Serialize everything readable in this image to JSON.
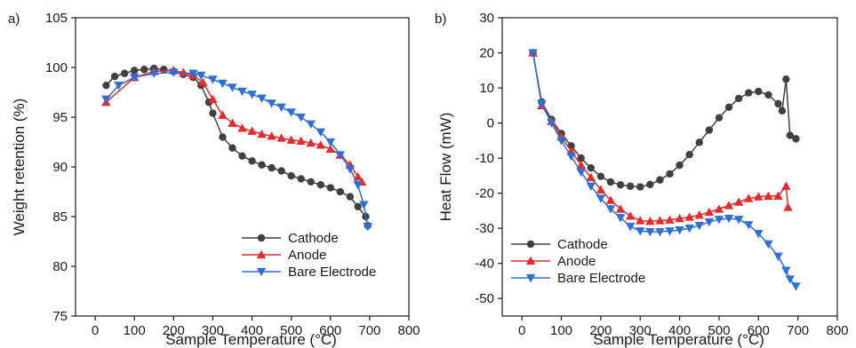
{
  "chart_data": [
    {
      "type": "line",
      "panel_label": "a)",
      "xlabel": "Sample Temperature (°C)",
      "ylabel": "Weight retention (%)",
      "xlim": [
        -50,
        800
      ],
      "ylim": [
        75,
        105
      ],
      "xticks": [
        0,
        100,
        200,
        300,
        400,
        500,
        600,
        700,
        800
      ],
      "yticks": [
        75,
        80,
        85,
        90,
        95,
        100,
        105
      ],
      "grid": false,
      "legend_position": "bottom-right",
      "series": [
        {
          "name": "Cathode",
          "color": "#404040",
          "marker": "circle",
          "x": [
            28,
            50,
            75,
            100,
            125,
            150,
            175,
            200,
            225,
            250,
            270,
            290,
            300,
            325,
            350,
            375,
            400,
            425,
            450,
            475,
            500,
            525,
            550,
            575,
            600,
            625,
            650,
            670,
            690,
            695
          ],
          "y": [
            98.2,
            99.1,
            99.4,
            99.7,
            99.8,
            99.9,
            99.8,
            99.6,
            99.3,
            99.0,
            98.2,
            96.5,
            95.4,
            93.0,
            91.9,
            91.1,
            90.6,
            90.2,
            89.9,
            89.6,
            89.1,
            88.8,
            88.5,
            88.2,
            87.9,
            87.5,
            87.0,
            86.0,
            85.0,
            84.1
          ]
        },
        {
          "name": "Anode",
          "color": "#e8292d",
          "marker": "triangle-up",
          "x": [
            28,
            100,
            150,
            200,
            225,
            250,
            275,
            300,
            325,
            350,
            375,
            400,
            425,
            450,
            475,
            500,
            525,
            550,
            575,
            600,
            625,
            650,
            670,
            680
          ],
          "y": [
            96.5,
            99.0,
            99.6,
            99.7,
            99.5,
            99.2,
            98.5,
            96.8,
            95.2,
            94.4,
            93.9,
            93.6,
            93.3,
            93.1,
            92.9,
            92.7,
            92.6,
            92.4,
            92.2,
            91.8,
            91.2,
            90.2,
            89.0,
            88.5
          ]
        },
        {
          "name": "Bare Electrode",
          "color": "#2e6fd6",
          "marker": "triangle-down",
          "x": [
            28,
            60,
            100,
            150,
            200,
            250,
            270,
            300,
            325,
            350,
            375,
            400,
            425,
            450,
            475,
            500,
            525,
            550,
            575,
            600,
            625,
            650,
            670,
            685,
            695
          ],
          "y": [
            96.8,
            98.2,
            99.0,
            99.4,
            99.5,
            99.4,
            99.2,
            98.8,
            98.4,
            98.0,
            97.6,
            97.3,
            96.9,
            96.4,
            96.0,
            95.5,
            95.0,
            94.3,
            93.5,
            92.5,
            91.2,
            89.8,
            88.2,
            86.2,
            84.0
          ]
        }
      ]
    },
    {
      "type": "line",
      "panel_label": "b)",
      "xlabel": "Sample Temperature (°C)",
      "ylabel": "Heat Flow (mW)",
      "xlim": [
        -50,
        800
      ],
      "ylim": [
        -55,
        30
      ],
      "xticks": [
        0,
        100,
        200,
        300,
        400,
        500,
        600,
        700,
        800
      ],
      "yticks": [
        -50,
        -40,
        -30,
        -20,
        -10,
        0,
        10,
        20,
        30
      ],
      "grid": false,
      "legend_position": "bottom-left",
      "series": [
        {
          "name": "Cathode",
          "color": "#404040",
          "marker": "circle",
          "x": [
            28,
            50,
            75,
            100,
            125,
            150,
            175,
            200,
            225,
            250,
            275,
            300,
            325,
            350,
            375,
            400,
            425,
            450,
            475,
            500,
            525,
            550,
            575,
            600,
            625,
            650,
            660,
            670,
            680,
            695
          ],
          "y": [
            20.0,
            6.0,
            1.0,
            -3.0,
            -6.5,
            -10.0,
            -12.8,
            -15.2,
            -16.8,
            -17.6,
            -18.0,
            -18.2,
            -17.5,
            -16.2,
            -14.5,
            -12.0,
            -9.0,
            -5.5,
            -2.0,
            1.5,
            4.5,
            7.0,
            8.6,
            9.0,
            8.0,
            5.5,
            3.5,
            12.5,
            -3.5,
            -4.5
          ]
        },
        {
          "name": "Anode",
          "color": "#e8292d",
          "marker": "triangle-up",
          "x": [
            28,
            50,
            75,
            100,
            125,
            150,
            175,
            200,
            225,
            250,
            275,
            300,
            325,
            350,
            375,
            400,
            425,
            450,
            475,
            500,
            525,
            550,
            575,
            600,
            625,
            650,
            670,
            675
          ],
          "y": [
            20.0,
            5.0,
            0.5,
            -4.0,
            -8.0,
            -12.0,
            -15.5,
            -19.0,
            -22.0,
            -24.5,
            -26.5,
            -27.8,
            -28.0,
            -27.8,
            -27.6,
            -27.2,
            -26.8,
            -26.2,
            -25.4,
            -24.5,
            -23.5,
            -22.5,
            -21.5,
            -21.0,
            -20.8,
            -20.8,
            -18.0,
            -24.0
          ]
        },
        {
          "name": "Bare Electrode",
          "color": "#2e6fd6",
          "marker": "triangle-down",
          "x": [
            28,
            50,
            75,
            100,
            125,
            150,
            175,
            200,
            225,
            250,
            275,
            300,
            325,
            350,
            375,
            400,
            425,
            450,
            475,
            500,
            525,
            550,
            575,
            600,
            625,
            650,
            670,
            680,
            695
          ],
          "y": [
            20.0,
            5.5,
            0.0,
            -5.0,
            -9.5,
            -14.0,
            -18.0,
            -21.5,
            -24.5,
            -27.0,
            -29.5,
            -30.8,
            -31.0,
            -31.0,
            -30.8,
            -30.5,
            -30.0,
            -29.2,
            -28.2,
            -27.5,
            -27.2,
            -27.5,
            -29.0,
            -31.5,
            -34.5,
            -38.0,
            -42.0,
            -44.5,
            -46.5
          ]
        }
      ]
    }
  ]
}
